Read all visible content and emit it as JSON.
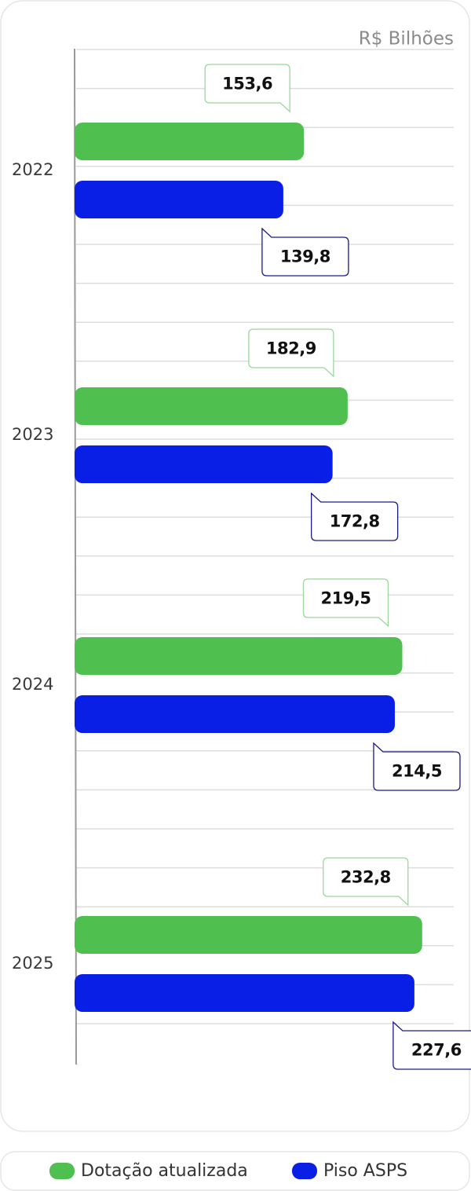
{
  "chart_data": {
    "type": "bar",
    "orientation": "horizontal",
    "xlabel": "R$ Bilhões",
    "categories": [
      "2022",
      "2023",
      "2024",
      "2025"
    ],
    "series": [
      {
        "name": "Dotação atualizada",
        "color": "#4fbf4f",
        "values": [
          153.6,
          182.9,
          219.5,
          232.8
        ],
        "value_labels": [
          "153,6",
          "182,9",
          "219,5",
          "232,8"
        ]
      },
      {
        "name": "Piso ASPS",
        "color": "#0a1fe6",
        "values": [
          139.8,
          172.8,
          214.5,
          227.6
        ],
        "value_labels": [
          "139,8",
          "172,8",
          "214,5",
          "227,6"
        ]
      }
    ],
    "xlim": [
      0,
      255
    ],
    "legend": "bottom"
  }
}
